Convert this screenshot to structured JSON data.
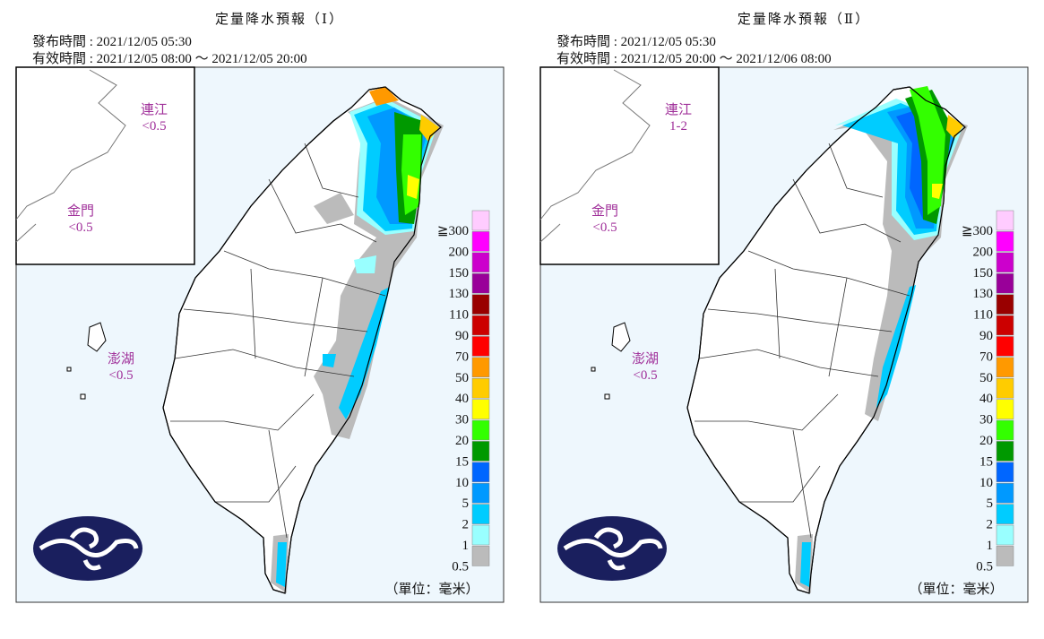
{
  "panels": [
    {
      "title": "定量降水預報（Ⅰ）",
      "issued": "發布時間 : 2021/12/05 05:30",
      "valid": "有效時間 : 2021/12/05 08:00 ～ 2021/12/05 20:00",
      "islands": [
        {
          "name": "連江",
          "value": "<0.5"
        },
        {
          "name": "金門",
          "value": "<0.5"
        },
        {
          "name": "澎湖",
          "value": "<0.5"
        }
      ],
      "unit": "（單位：毫米）"
    },
    {
      "title": "定量降水預報（Ⅱ）",
      "issued": "發布時間 : 2021/12/05 05:30",
      "valid": "有效時間 : 2021/12/05 20:00 ～ 2021/12/06 08:00",
      "islands": [
        {
          "name": "連江",
          "value": "1-2"
        },
        {
          "name": "金門",
          "value": "<0.5"
        },
        {
          "name": "澎湖",
          "value": "<0.5"
        }
      ],
      "unit": "（單位：毫米）"
    }
  ],
  "legend": [
    {
      "label": "≧300",
      "color": "#ffccff"
    },
    {
      "label": "200",
      "color": "#ff00ff"
    },
    {
      "label": "150",
      "color": "#cc00cc"
    },
    {
      "label": "130",
      "color": "#990099"
    },
    {
      "label": "110",
      "color": "#990000"
    },
    {
      "label": "90",
      "color": "#cc0000"
    },
    {
      "label": "70",
      "color": "#ff0000"
    },
    {
      "label": "50",
      "color": "#ff9900"
    },
    {
      "label": "40",
      "color": "#ffcc00"
    },
    {
      "label": "30",
      "color": "#ffff00"
    },
    {
      "label": "20",
      "color": "#33ff00"
    },
    {
      "label": "15",
      "color": "#009900"
    },
    {
      "label": "10",
      "color": "#0066ff"
    },
    {
      "label": "5",
      "color": "#0099ff"
    },
    {
      "label": "2",
      "color": "#00ccff"
    },
    {
      "label": "1",
      "color": "#99ffff"
    },
    {
      "label": "0.5",
      "color": "#bbbbbb"
    }
  ]
}
